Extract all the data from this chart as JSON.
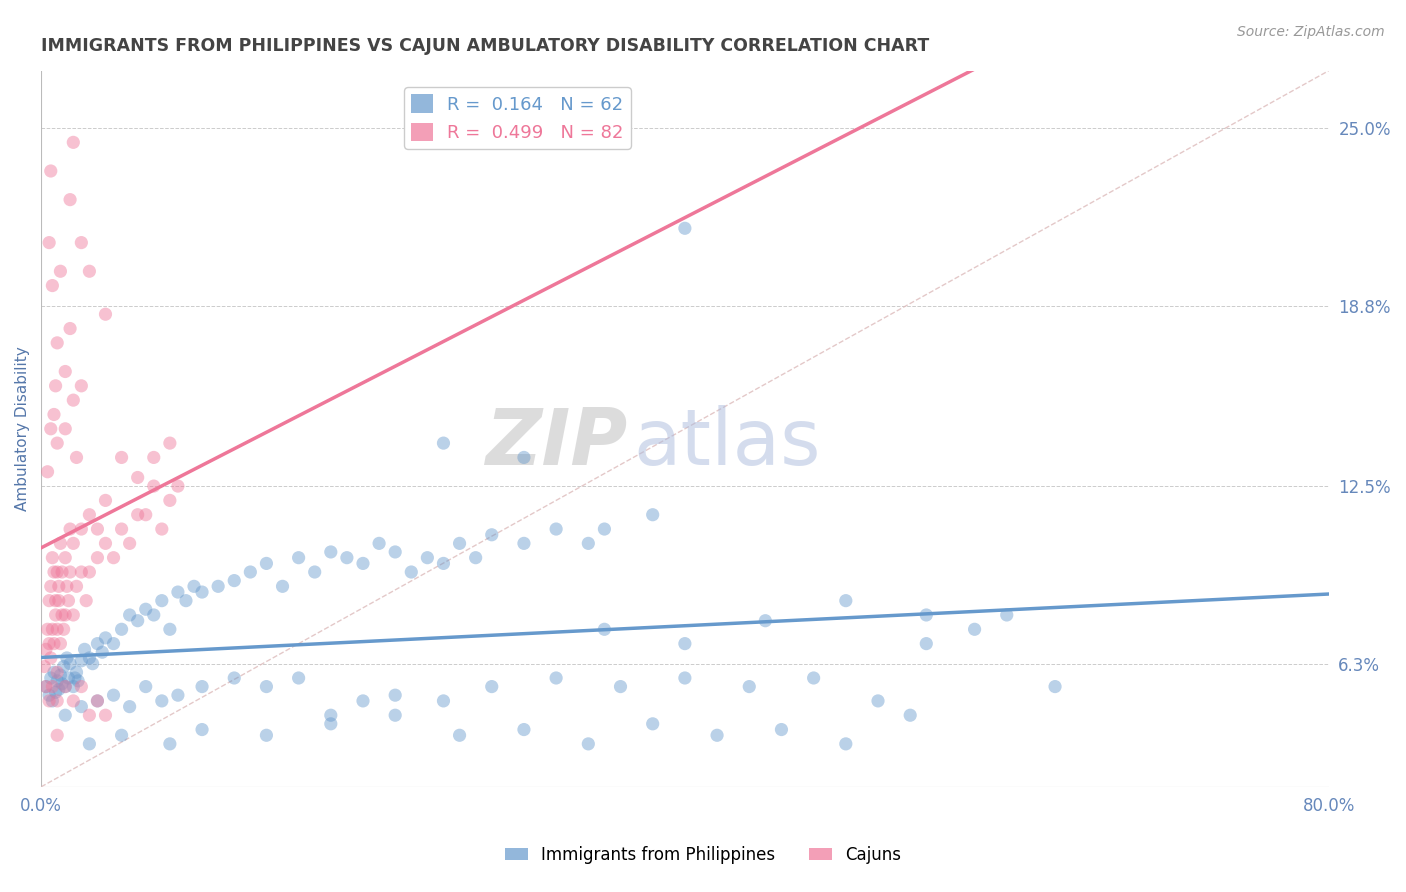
{
  "title": "IMMIGRANTS FROM PHILIPPINES VS CAJUN AMBULATORY DISABILITY CORRELATION CHART",
  "source_text": "Source: ZipAtlas.com",
  "ylabel": "Ambulatory Disability",
  "xlim": [
    0.0,
    80.0
  ],
  "ylim": [
    2.0,
    27.0
  ],
  "xticklabels": [
    "0.0%",
    "80.0%"
  ],
  "yticks_right": [
    6.3,
    12.5,
    18.8,
    25.0
  ],
  "yticklabels_right": [
    "6.3%",
    "12.5%",
    "18.8%",
    "25.0%"
  ],
  "blue_color": "#6699cc",
  "pink_color": "#ee7799",
  "blue_scatter": [
    [
      0.3,
      5.5
    ],
    [
      0.5,
      5.2
    ],
    [
      0.6,
      5.8
    ],
    [
      0.7,
      5.0
    ],
    [
      0.8,
      6.0
    ],
    [
      0.9,
      5.3
    ],
    [
      1.0,
      5.7
    ],
    [
      1.1,
      5.4
    ],
    [
      1.2,
      5.9
    ],
    [
      1.3,
      5.6
    ],
    [
      1.4,
      6.2
    ],
    [
      1.5,
      5.5
    ],
    [
      1.6,
      6.5
    ],
    [
      1.7,
      5.8
    ],
    [
      1.8,
      6.3
    ],
    [
      2.0,
      5.5
    ],
    [
      2.1,
      5.8
    ],
    [
      2.2,
      6.0
    ],
    [
      2.3,
      5.7
    ],
    [
      2.5,
      6.4
    ],
    [
      2.7,
      6.8
    ],
    [
      3.0,
      6.5
    ],
    [
      3.2,
      6.3
    ],
    [
      3.5,
      7.0
    ],
    [
      3.8,
      6.7
    ],
    [
      4.0,
      7.2
    ],
    [
      4.5,
      7.0
    ],
    [
      5.0,
      7.5
    ],
    [
      5.5,
      8.0
    ],
    [
      6.0,
      7.8
    ],
    [
      6.5,
      8.2
    ],
    [
      7.0,
      8.0
    ],
    [
      7.5,
      8.5
    ],
    [
      8.0,
      7.5
    ],
    [
      8.5,
      8.8
    ],
    [
      9.0,
      8.5
    ],
    [
      9.5,
      9.0
    ],
    [
      10.0,
      8.8
    ],
    [
      11.0,
      9.0
    ],
    [
      12.0,
      9.2
    ],
    [
      13.0,
      9.5
    ],
    [
      14.0,
      9.8
    ],
    [
      15.0,
      9.0
    ],
    [
      16.0,
      10.0
    ],
    [
      17.0,
      9.5
    ],
    [
      18.0,
      10.2
    ],
    [
      19.0,
      10.0
    ],
    [
      20.0,
      9.8
    ],
    [
      21.0,
      10.5
    ],
    [
      22.0,
      10.2
    ],
    [
      23.0,
      9.5
    ],
    [
      24.0,
      10.0
    ],
    [
      25.0,
      9.8
    ],
    [
      26.0,
      10.5
    ],
    [
      27.0,
      10.0
    ],
    [
      28.0,
      10.8
    ],
    [
      30.0,
      10.5
    ],
    [
      32.0,
      11.0
    ],
    [
      34.0,
      10.5
    ],
    [
      35.0,
      11.0
    ],
    [
      38.0,
      11.5
    ],
    [
      40.0,
      21.5
    ],
    [
      1.5,
      4.5
    ],
    [
      2.5,
      4.8
    ],
    [
      3.5,
      5.0
    ],
    [
      4.5,
      5.2
    ],
    [
      5.5,
      4.8
    ],
    [
      6.5,
      5.5
    ],
    [
      7.5,
      5.0
    ],
    [
      8.5,
      5.2
    ],
    [
      10.0,
      5.5
    ],
    [
      12.0,
      5.8
    ],
    [
      14.0,
      5.5
    ],
    [
      16.0,
      5.8
    ],
    [
      18.0,
      4.5
    ],
    [
      20.0,
      5.0
    ],
    [
      22.0,
      5.2
    ],
    [
      25.0,
      5.0
    ],
    [
      28.0,
      5.5
    ],
    [
      32.0,
      5.8
    ],
    [
      36.0,
      5.5
    ],
    [
      40.0,
      5.8
    ],
    [
      44.0,
      5.5
    ],
    [
      48.0,
      5.8
    ],
    [
      52.0,
      5.0
    ],
    [
      55.0,
      8.0
    ],
    [
      58.0,
      7.5
    ],
    [
      60.0,
      8.0
    ],
    [
      63.0,
      5.5
    ],
    [
      3.0,
      3.5
    ],
    [
      5.0,
      3.8
    ],
    [
      8.0,
      3.5
    ],
    [
      10.0,
      4.0
    ],
    [
      14.0,
      3.8
    ],
    [
      18.0,
      4.2
    ],
    [
      22.0,
      4.5
    ],
    [
      26.0,
      3.8
    ],
    [
      30.0,
      4.0
    ],
    [
      34.0,
      3.5
    ],
    [
      38.0,
      4.2
    ],
    [
      42.0,
      3.8
    ],
    [
      46.0,
      4.0
    ],
    [
      50.0,
      3.5
    ],
    [
      54.0,
      4.5
    ],
    [
      25.0,
      14.0
    ],
    [
      30.0,
      13.5
    ],
    [
      35.0,
      7.5
    ],
    [
      40.0,
      7.0
    ],
    [
      45.0,
      7.8
    ],
    [
      50.0,
      8.5
    ],
    [
      55.0,
      7.0
    ]
  ],
  "pink_scatter": [
    [
      0.2,
      6.2
    ],
    [
      0.3,
      6.8
    ],
    [
      0.4,
      7.5
    ],
    [
      0.5,
      7.0
    ],
    [
      0.5,
      8.5
    ],
    [
      0.6,
      6.5
    ],
    [
      0.6,
      9.0
    ],
    [
      0.7,
      7.5
    ],
    [
      0.7,
      10.0
    ],
    [
      0.8,
      7.0
    ],
    [
      0.8,
      9.5
    ],
    [
      0.9,
      8.0
    ],
    [
      0.9,
      8.5
    ],
    [
      1.0,
      6.0
    ],
    [
      1.0,
      9.5
    ],
    [
      1.0,
      7.5
    ],
    [
      1.1,
      8.5
    ],
    [
      1.1,
      9.0
    ],
    [
      1.2,
      7.0
    ],
    [
      1.2,
      10.5
    ],
    [
      1.3,
      8.0
    ],
    [
      1.3,
      9.5
    ],
    [
      1.4,
      7.5
    ],
    [
      1.5,
      8.0
    ],
    [
      1.5,
      10.0
    ],
    [
      1.6,
      9.0
    ],
    [
      1.7,
      8.5
    ],
    [
      1.8,
      9.5
    ],
    [
      1.8,
      11.0
    ],
    [
      2.0,
      8.0
    ],
    [
      2.0,
      10.5
    ],
    [
      2.2,
      9.0
    ],
    [
      2.5,
      9.5
    ],
    [
      2.5,
      11.0
    ],
    [
      2.8,
      8.5
    ],
    [
      3.0,
      9.5
    ],
    [
      3.0,
      11.5
    ],
    [
      3.5,
      10.0
    ],
    [
      3.5,
      11.0
    ],
    [
      4.0,
      10.5
    ],
    [
      4.0,
      12.0
    ],
    [
      4.5,
      10.0
    ],
    [
      5.0,
      11.0
    ],
    [
      5.5,
      10.5
    ],
    [
      6.0,
      11.5
    ],
    [
      6.5,
      11.5
    ],
    [
      7.0,
      12.5
    ],
    [
      7.5,
      11.0
    ],
    [
      8.0,
      12.0
    ],
    [
      8.5,
      12.5
    ],
    [
      0.3,
      5.5
    ],
    [
      0.5,
      5.0
    ],
    [
      0.7,
      5.5
    ],
    [
      1.0,
      5.0
    ],
    [
      1.5,
      5.5
    ],
    [
      2.0,
      5.0
    ],
    [
      2.5,
      5.5
    ],
    [
      3.0,
      4.5
    ],
    [
      3.5,
      5.0
    ],
    [
      4.0,
      4.5
    ],
    [
      0.8,
      15.0
    ],
    [
      1.5,
      16.5
    ],
    [
      0.7,
      19.5
    ],
    [
      2.0,
      15.5
    ],
    [
      1.2,
      20.0
    ],
    [
      0.5,
      21.0
    ],
    [
      3.0,
      20.0
    ],
    [
      1.8,
      22.5
    ],
    [
      2.5,
      21.0
    ],
    [
      0.6,
      23.5
    ],
    [
      4.0,
      18.5
    ],
    [
      2.0,
      24.5
    ],
    [
      0.4,
      13.0
    ],
    [
      0.6,
      14.5
    ],
    [
      1.0,
      14.0
    ],
    [
      1.5,
      14.5
    ],
    [
      2.2,
      13.5
    ],
    [
      1.0,
      17.5
    ],
    [
      1.8,
      18.0
    ],
    [
      0.9,
      16.0
    ],
    [
      2.5,
      16.0
    ],
    [
      5.0,
      13.5
    ],
    [
      6.0,
      12.8
    ],
    [
      7.0,
      13.5
    ],
    [
      8.0,
      14.0
    ],
    [
      1.0,
      3.8
    ]
  ],
  "watermark_zip": "ZIP",
  "watermark_atlas": "atlas",
  "background_color": "#ffffff",
  "grid_color": "#cccccc",
  "title_color": "#444444",
  "axis_label_color": "#5577aa",
  "tick_label_color": "#6688bb"
}
